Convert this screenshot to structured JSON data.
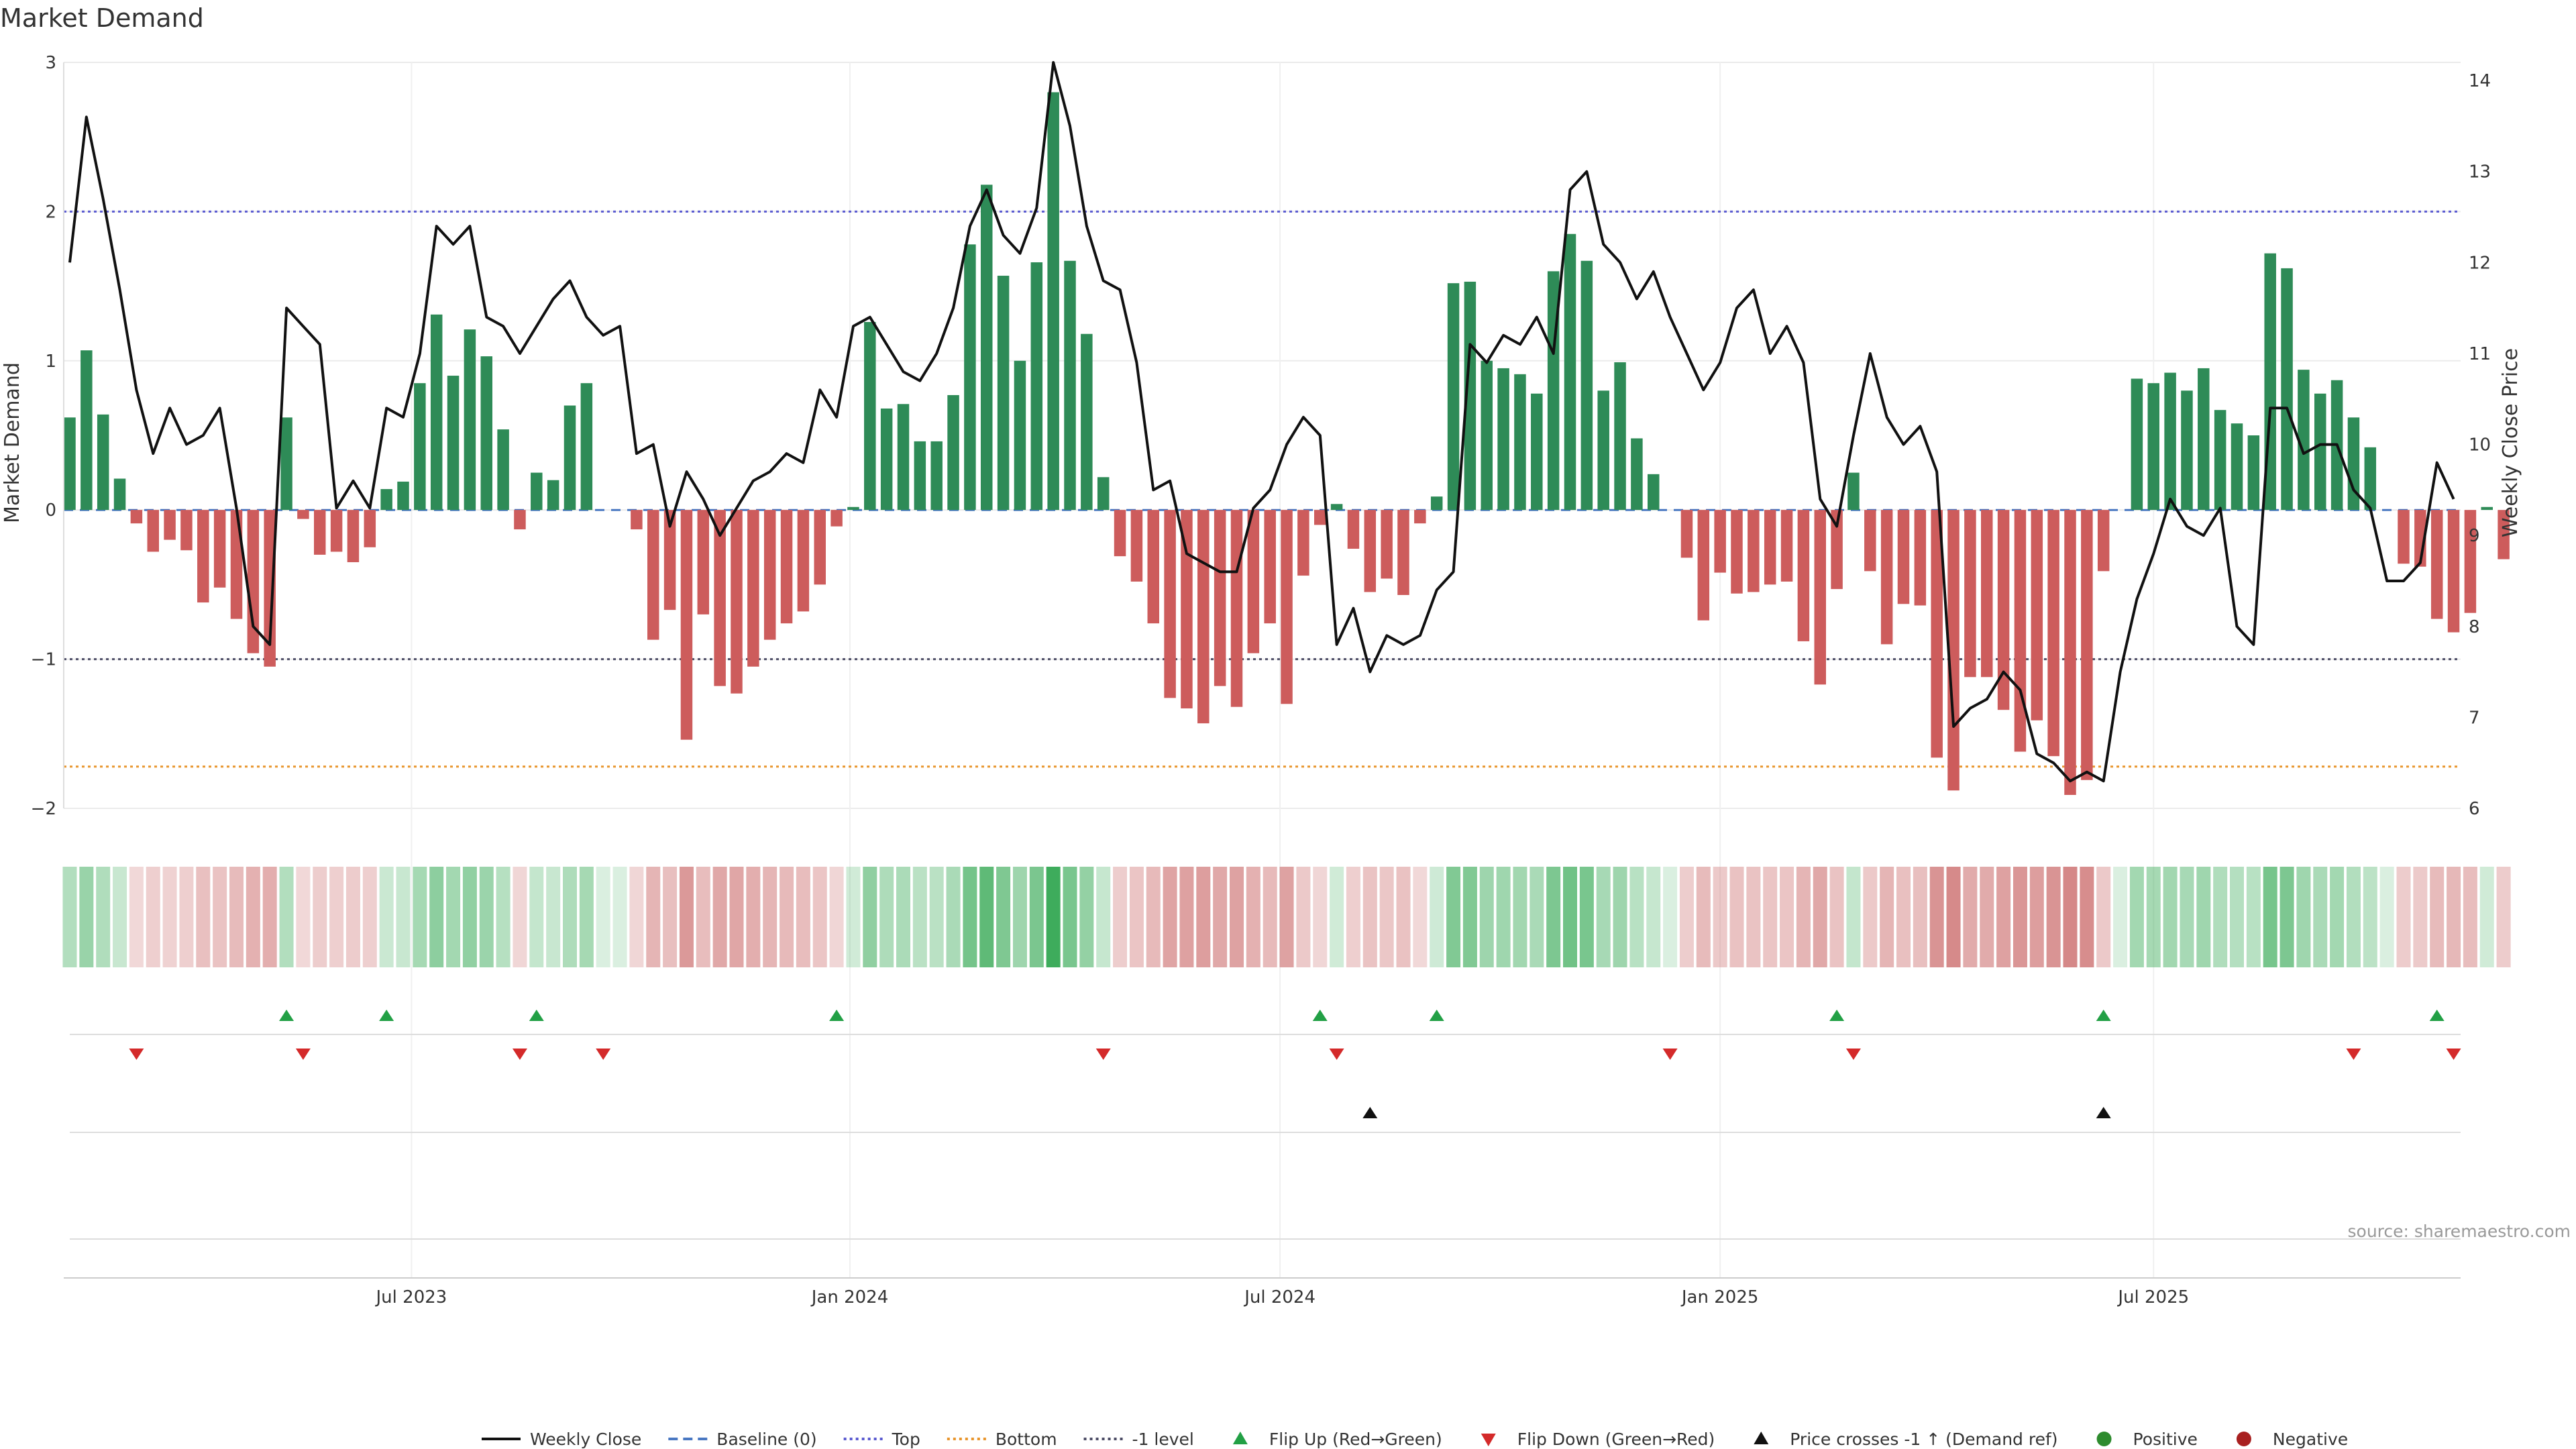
{
  "chart_data": {
    "type": "bar",
    "title": "Market Demand",
    "ylabel": "Market Demand",
    "y2label": "Weekly Close Price",
    "ylim": [
      -2,
      3
    ],
    "y2lim": [
      6,
      14.2
    ],
    "yticks": [
      3,
      2,
      1,
      0,
      -1,
      -2
    ],
    "ytick_labels": [
      "3",
      "2",
      "1",
      "0",
      "−1",
      "−2"
    ],
    "y2ticks": [
      14,
      13,
      12,
      11,
      10,
      9,
      8,
      7,
      6
    ],
    "y2tick_labels": [
      "14",
      "13",
      "12",
      "11",
      "10",
      "9",
      "8",
      "7",
      "6"
    ],
    "x_start_week": 0,
    "x_end_week": 144,
    "xticks": [
      {
        "week": 20.5,
        "label": "Jul 2023"
      },
      {
        "week": 46.8,
        "label": "Jan 2024"
      },
      {
        "week": 72.6,
        "label": "Jul 2024"
      },
      {
        "week": 99.0,
        "label": "Jan 2025"
      },
      {
        "week": 125.0,
        "label": "Jul 2025"
      }
    ],
    "ref_lines": {
      "top": 2,
      "bottom": -1.72,
      "minus_one": -1,
      "baseline": 0
    },
    "demand": [
      0.62,
      1.07,
      0.64,
      0.21,
      -0.09,
      -0.28,
      -0.2,
      -0.27,
      -0.62,
      -0.52,
      -0.73,
      -0.96,
      -1.05,
      0.62,
      -0.06,
      -0.3,
      -0.28,
      -0.35,
      -0.25,
      0.14,
      0.19,
      0.85,
      1.31,
      0.9,
      1.21,
      1.03,
      0.54,
      -0.13,
      0.25,
      0.2,
      0.7,
      0.85,
      0,
      0,
      -0.13,
      -0.87,
      -0.67,
      -1.54,
      -0.7,
      -1.18,
      -1.23,
      -1.05,
      -0.87,
      -0.76,
      -0.68,
      -0.5,
      -0.11,
      0.02,
      1.26,
      0.68,
      0.71,
      0.46,
      0.46,
      0.77,
      1.78,
      2.18,
      1.57,
      1.0,
      1.66,
      2.8,
      1.67,
      1.18,
      0.22,
      -0.31,
      -0.48,
      -0.76,
      -1.26,
      -1.33,
      -1.43,
      -1.18,
      -1.32,
      -0.96,
      -0.76,
      -1.3,
      -0.44,
      -0.1,
      0.04,
      -0.26,
      -0.55,
      -0.46,
      -0.57,
      -0.09,
      0.09,
      1.52,
      1.53,
      1.0,
      0.95,
      0.91,
      0.78,
      1.6,
      1.85,
      1.67,
      0.8,
      0.99,
      0.48,
      0.24,
      0,
      -0.32,
      -0.74,
      -0.42,
      -0.56,
      -0.55,
      -0.5,
      -0.48,
      -0.88,
      -1.17,
      -0.53,
      0.25,
      -0.41,
      -0.9,
      -0.63,
      -0.64,
      -1.66,
      -1.88,
      -1.12,
      -1.12,
      -1.34,
      -1.62,
      -1.41,
      -1.65,
      -1.91,
      -1.81,
      -0.41,
      0,
      0.88,
      0.85,
      0.92,
      0.8,
      0.95,
      0.67,
      0.58,
      0.5,
      1.72,
      1.62,
      0.94,
      0.78,
      0.87,
      0.62,
      0.42,
      0,
      -0.36,
      -0.38,
      -0.73,
      -0.82,
      -0.69,
      0.02,
      -0.33
    ],
    "price": [
      12.0,
      13.6,
      12.7,
      11.7,
      10.6,
      9.9,
      10.4,
      10.0,
      10.1,
      10.4,
      9.3,
      8.0,
      7.8,
      11.5,
      11.3,
      11.1,
      9.3,
      9.6,
      9.3,
      10.4,
      10.3,
      11.0,
      12.4,
      12.2,
      12.4,
      11.4,
      11.3,
      11.0,
      11.3,
      11.6,
      11.8,
      11.4,
      11.2,
      11.3,
      9.9,
      10.0,
      9.1,
      9.7,
      9.4,
      9.0,
      9.3,
      9.6,
      9.7,
      9.9,
      9.8,
      10.6,
      10.3,
      11.3,
      11.4,
      11.1,
      10.8,
      10.7,
      11.0,
      11.5,
      12.4,
      12.8,
      12.3,
      12.1,
      12.6,
      14.2,
      13.5,
      12.4,
      11.8,
      11.7,
      10.9,
      9.5,
      9.6,
      8.8,
      8.7,
      8.6,
      8.6,
      9.3,
      9.5,
      10.0,
      10.3,
      10.1,
      7.8,
      8.2,
      7.5,
      7.9,
      7.8,
      7.9,
      8.4,
      8.6,
      11.1,
      10.9,
      11.2,
      11.1,
      11.4,
      11.0,
      12.8,
      13.0,
      12.2,
      12.0,
      11.6,
      11.9,
      11.4,
      11.0,
      10.6,
      10.9,
      11.5,
      11.7,
      11.0,
      11.3,
      10.9,
      9.4,
      9.1,
      10.1,
      11.0,
      10.3,
      10.0,
      10.2,
      9.7,
      6.9,
      7.1,
      7.2,
      7.5,
      7.3,
      6.6,
      6.5,
      6.3,
      6.4,
      6.3,
      7.5,
      8.3,
      8.8,
      9.4,
      9.1,
      9.0,
      9.3,
      8.0,
      7.8,
      10.4,
      10.4,
      9.9,
      10.0,
      10.0,
      9.5,
      9.3,
      8.5,
      8.5,
      8.7,
      9.8,
      9.4
    ],
    "flip_up_weeks": [
      13,
      19,
      28,
      46,
      75,
      82,
      106,
      122,
      142
    ],
    "flip_down_weeks": [
      4,
      14,
      27,
      32,
      62,
      76,
      96,
      107,
      137,
      143
    ],
    "price_cross_weeks": [
      78,
      122
    ],
    "source": "source: sharemaestro.com",
    "legend": [
      {
        "label": "Weekly Close",
        "kind": "line",
        "color": "#111111"
      },
      {
        "label": "Baseline (0)",
        "kind": "dash",
        "color": "#4a78c2"
      },
      {
        "label": "Top",
        "kind": "dot",
        "color": "#5a5ad0"
      },
      {
        "label": "Bottom",
        "kind": "dot",
        "color": "#e8962e"
      },
      {
        "label": "-1 level",
        "kind": "dot",
        "color": "#4d4d66"
      },
      {
        "label": "Flip Up (Red→Green)",
        "kind": "tri-up",
        "color": "#22a045"
      },
      {
        "label": "Flip Down (Green→Red)",
        "kind": "tri-down",
        "color": "#d42a2a"
      },
      {
        "label": "Price crosses -1 ↑ (Demand ref)",
        "kind": "tri-up",
        "color": "#111111"
      },
      {
        "label": "Positive",
        "kind": "circle",
        "color": "#2e8b2e"
      },
      {
        "label": "Negative",
        "kind": "circle",
        "color": "#a82020"
      }
    ],
    "colors": {
      "positive_bar": "#2e8b57",
      "negative_bar": "#cd5c5c",
      "heat_positive": "#34a853",
      "heat_negative": "#c55a5a",
      "price_line": "#111111",
      "grid": "#ebebeb"
    }
  }
}
